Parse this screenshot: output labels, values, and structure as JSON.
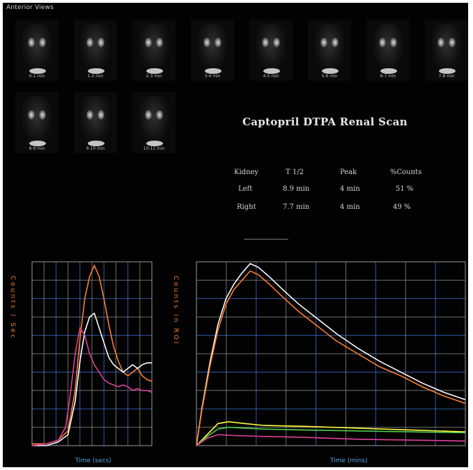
{
  "window_title": "Anterior Views",
  "frames": [
    {
      "caption": "0-1 min"
    },
    {
      "caption": "1-2 min"
    },
    {
      "caption": "2-3 min"
    },
    {
      "caption": "3-4 min"
    },
    {
      "caption": "4-5 min"
    },
    {
      "caption": "5-6 min"
    },
    {
      "caption": "6-7 min"
    },
    {
      "caption": "7-8 min"
    },
    {
      "caption": "8-9 min"
    },
    {
      "caption": "9-10 min"
    },
    {
      "caption": "10-11 min"
    }
  ],
  "scan_title": "Captopril DTPA Renal Scan",
  "results_table": {
    "headers": [
      "Kidney",
      "T 1/2",
      "Peak",
      "%Counts"
    ],
    "rows": [
      [
        "Left",
        "8.9 min",
        "4 min",
        "51 %"
      ],
      [
        "Right",
        "7.7 min",
        "4 min",
        "49 %"
      ]
    ]
  },
  "colors": {
    "grid_blue": "#3f6fd1",
    "grid_gray": "#8a8a8a",
    "left_kidney": "#ff7f2a",
    "right_kidney": "#ffffff",
    "aorta": "#e0409a",
    "background_region": "#ffff3a",
    "text_green": "#4fcf4f"
  },
  "chart_data": [
    {
      "type": "line",
      "title": "",
      "xlabel": "Time (secs)",
      "ylabel": "Counts / Sec",
      "xlim": [
        0,
        100
      ],
      "ylim": [
        0,
        100
      ],
      "series": [
        {
          "values": [
            [
              0,
              1
            ],
            [
              12,
              1
            ],
            [
              22,
              3
            ],
            [
              30,
              8
            ],
            [
              36,
              30
            ],
            [
              40,
              58
            ],
            [
              44,
              80
            ],
            [
              48,
              92
            ],
            [
              52,
              98
            ],
            [
              56,
              92
            ],
            [
              60,
              80
            ],
            [
              64,
              66
            ],
            [
              68,
              54
            ],
            [
              72,
              46
            ],
            [
              76,
              40
            ],
            [
              80,
              38
            ],
            [
              84,
              40
            ],
            [
              88,
              42
            ],
            [
              92,
              38
            ],
            [
              96,
              36
            ],
            [
              100,
              35
            ]
          ]
        },
        {
          "values": [
            [
              0,
              0
            ],
            [
              12,
              0
            ],
            [
              22,
              2
            ],
            [
              30,
              6
            ],
            [
              36,
              24
            ],
            [
              40,
              46
            ],
            [
              44,
              62
            ],
            [
              48,
              70
            ],
            [
              52,
              72
            ],
            [
              56,
              64
            ],
            [
              60,
              56
            ],
            [
              64,
              48
            ],
            [
              68,
              44
            ],
            [
              72,
              42
            ],
            [
              76,
              40
            ],
            [
              80,
              42
            ],
            [
              84,
              44
            ],
            [
              88,
              42
            ],
            [
              92,
              44
            ],
            [
              96,
              45
            ],
            [
              100,
              45
            ]
          ]
        },
        {
          "values": [
            [
              0,
              0
            ],
            [
              12,
              1
            ],
            [
              22,
              3
            ],
            [
              28,
              10
            ],
            [
              32,
              28
            ],
            [
              36,
              50
            ],
            [
              40,
              64
            ],
            [
              44,
              60
            ],
            [
              48,
              50
            ],
            [
              52,
              44
            ],
            [
              56,
              40
            ],
            [
              60,
              36
            ],
            [
              64,
              34
            ],
            [
              68,
              33
            ],
            [
              72,
              32
            ],
            [
              76,
              33
            ],
            [
              80,
              32
            ],
            [
              84,
              30
            ],
            [
              88,
              31
            ],
            [
              92,
              30
            ],
            [
              96,
              30
            ],
            [
              100,
              29
            ]
          ]
        }
      ]
    },
    {
      "type": "line",
      "title": "",
      "xlabel": "Time (mins)",
      "ylabel": "Counts in ROI",
      "xlim": [
        0,
        100
      ],
      "ylim": [
        0,
        100
      ],
      "series": [
        {
          "values": [
            [
              0,
              0
            ],
            [
              2,
              20
            ],
            [
              5,
              45
            ],
            [
              8,
              66
            ],
            [
              11,
              80
            ],
            [
              14,
              88
            ],
            [
              17,
              94
            ],
            [
              20,
              99
            ],
            [
              23,
              97
            ],
            [
              27,
              92
            ],
            [
              32,
              85
            ],
            [
              38,
              77
            ],
            [
              45,
              69
            ],
            [
              52,
              61
            ],
            [
              60,
              53
            ],
            [
              68,
              46
            ],
            [
              76,
              40
            ],
            [
              84,
              34
            ],
            [
              92,
              29
            ],
            [
              100,
              25
            ]
          ]
        },
        {
          "values": [
            [
              0,
              0
            ],
            [
              2,
              19
            ],
            [
              5,
              43
            ],
            [
              8,
              63
            ],
            [
              11,
              77
            ],
            [
              14,
              85
            ],
            [
              17,
              90
            ],
            [
              20,
              95
            ],
            [
              23,
              93
            ],
            [
              27,
              88
            ],
            [
              32,
              81
            ],
            [
              38,
              73
            ],
            [
              45,
              65
            ],
            [
              52,
              57
            ],
            [
              60,
              50
            ],
            [
              68,
              43
            ],
            [
              76,
              38
            ],
            [
              84,
              32
            ],
            [
              92,
              27
            ],
            [
              100,
              23
            ]
          ]
        },
        {
          "values": [
            [
              0,
              0
            ],
            [
              4,
              6
            ],
            [
              8,
              12
            ],
            [
              12,
              13
            ],
            [
              18,
              12
            ],
            [
              25,
              11
            ],
            [
              40,
              10.5
            ],
            [
              60,
              9.5
            ],
            [
              80,
              8.5
            ],
            [
              100,
              7.5
            ]
          ]
        },
        {
          "values": [
            [
              0,
              0
            ],
            [
              4,
              5
            ],
            [
              8,
              9
            ],
            [
              12,
              10
            ],
            [
              18,
              9.5
            ],
            [
              25,
              9
            ],
            [
              40,
              8.5
            ],
            [
              60,
              8
            ],
            [
              80,
              7.5
            ],
            [
              100,
              7
            ]
          ]
        },
        {
          "values": [
            [
              0,
              0
            ],
            [
              4,
              4
            ],
            [
              8,
              6
            ],
            [
              14,
              5.5
            ],
            [
              25,
              5
            ],
            [
              40,
              4.5
            ],
            [
              60,
              3.5
            ],
            [
              80,
              3
            ],
            [
              100,
              2.5
            ]
          ]
        }
      ]
    }
  ]
}
